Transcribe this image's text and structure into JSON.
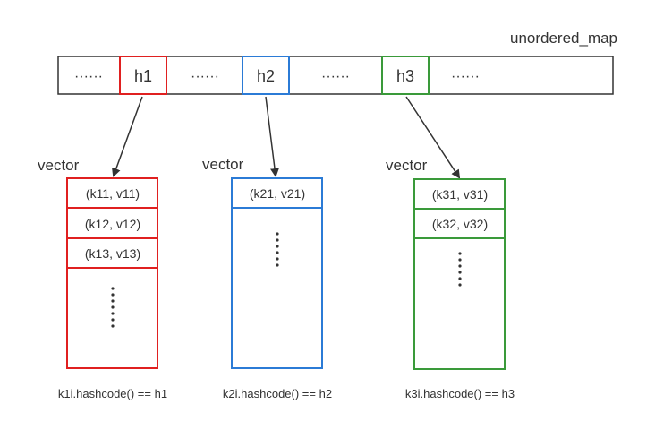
{
  "map_label": "unordered_map",
  "map_cells": [
    {
      "text": "······",
      "kind": "ellipsis"
    },
    {
      "text": "h1",
      "kind": "hash",
      "color": "#e02020"
    },
    {
      "text": "······",
      "kind": "ellipsis"
    },
    {
      "text": "h2",
      "kind": "hash",
      "color": "#2b7bd6"
    },
    {
      "text": "······",
      "kind": "ellipsis"
    },
    {
      "text": "h3",
      "kind": "hash",
      "color": "#3a9a3a"
    },
    {
      "text": "······",
      "kind": "ellipsis"
    }
  ],
  "vectors": [
    {
      "label": "vector",
      "color": "#e02020",
      "entries": [
        "(k11, v11)",
        "(k12, v12)",
        "(k13, v13)"
      ],
      "caption": "k1i.hashcode() == h1"
    },
    {
      "label": "vector",
      "color": "#2b7bd6",
      "entries": [
        "(k21, v21)"
      ],
      "caption": "k2i.hashcode() == h2"
    },
    {
      "label": "vector",
      "color": "#3a9a3a",
      "entries": [
        "(k31, v31)",
        "(k32, v32)"
      ],
      "caption": "k3i.hashcode() == h3"
    }
  ],
  "colors": {
    "map_border": "#333333",
    "text": "#333333",
    "arrow": "#333333"
  }
}
